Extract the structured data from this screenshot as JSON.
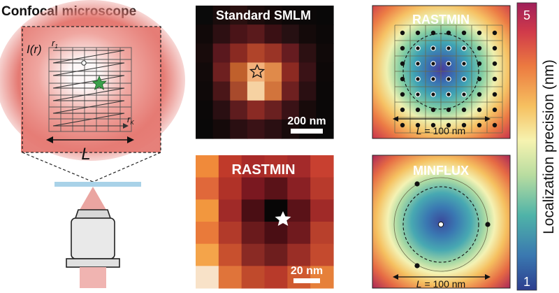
{
  "confocal": {
    "title": "Confocal microscope",
    "intensity_label": "I(r)",
    "r1_label": "r",
    "r1_sub": "1",
    "rk_label": "r",
    "rk_sub": "K",
    "length_label": "L"
  },
  "panels": {
    "smlm": {
      "title": "Standard SMLM",
      "scalebar": "200 nm"
    },
    "rastmin_raw": {
      "title": "RASTMIN",
      "scalebar": "20 nm"
    },
    "rastmin_map": {
      "title": "RASTMIN",
      "length_prefix": "L",
      "length_value": " = 100 nm"
    },
    "minflux_map": {
      "title": "MINFLUX",
      "length_prefix": "L",
      "length_value": " = 100 nm"
    }
  },
  "colorbar": {
    "label": "Localization precision (nm)",
    "max_label": "5",
    "min_label": "1",
    "colors": [
      "#2c3e8f",
      "#3a78b0",
      "#4fb3a8",
      "#b8dca0",
      "#f6f3b0",
      "#f6c060",
      "#ec7a40",
      "#d03a4a",
      "#a0205a"
    ]
  },
  "colors": {
    "accent_green": "#3aa04a",
    "slide": "#a9d2e8"
  },
  "icons": {
    "star": "star-icon",
    "objective": "objective-icon"
  }
}
